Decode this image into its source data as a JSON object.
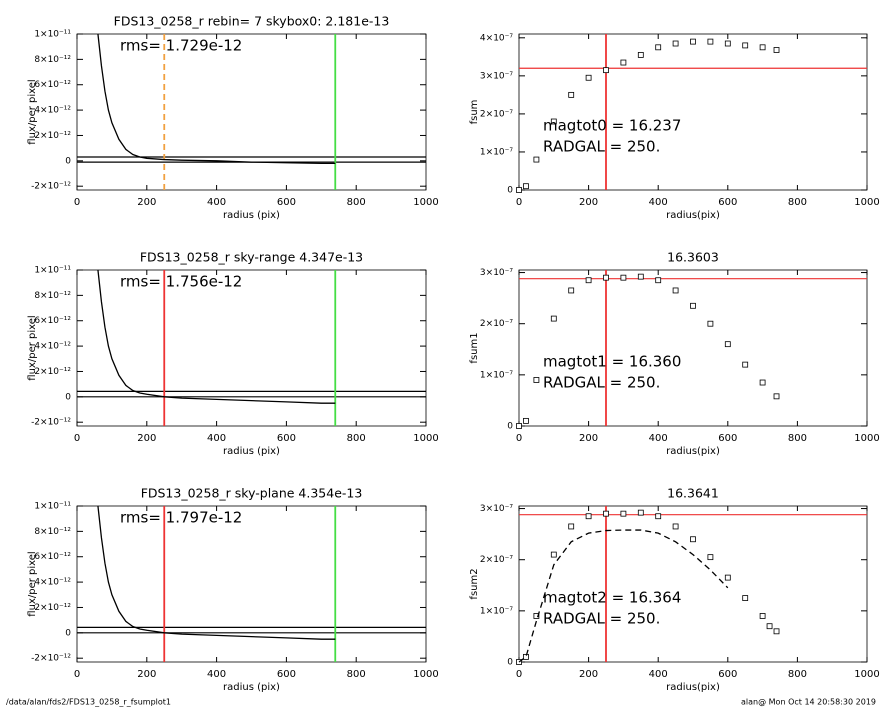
{
  "chart_data": [
    {
      "type": "profile",
      "title": "FDS13_0258_r rebin= 7    skybox0:  2.181e-13",
      "annotations": [
        "rms= 1.729e-12"
      ],
      "xlabel": "radius (pix)",
      "ylabel": "flux/per pixel",
      "x": [
        60,
        70,
        80,
        90,
        100,
        120,
        140,
        160,
        180,
        200,
        250,
        300,
        400,
        500,
        600,
        700,
        740
      ],
      "series": [
        {
          "color": "#000000",
          "values": [
            1e-11,
            7.5e-12,
            5.5e-12,
            4e-12,
            3e-12,
            1.7e-12,
            9e-13,
            5e-13,
            3e-13,
            2e-13,
            1e-13,
            5e-14,
            0,
            -1e-13,
            -1.5e-13,
            -2e-13,
            -2e-13
          ]
        }
      ],
      "xlim": [
        0,
        1000
      ],
      "ylim": [
        -2.3e-12,
        1e-11
      ],
      "xticks": [
        0,
        200,
        400,
        600,
        800,
        1000
      ],
      "yticks": [
        {
          "value": -2e-12,
          "label": "-2×10⁻¹²"
        },
        0,
        {
          "value": 2e-12,
          "label": "2×10⁻¹²"
        },
        {
          "value": 4e-12,
          "label": "4×10⁻¹²"
        },
        {
          "value": 6e-12,
          "label": "6×10⁻¹²"
        },
        {
          "value": 8e-12,
          "label": "8×10⁻¹²"
        },
        {
          "value": 1e-11,
          "label": "1×10⁻¹¹"
        }
      ],
      "hlines": [
        {
          "y": 3e-13,
          "color": "#000000"
        },
        {
          "y": -1e-13,
          "color": "#000000"
        }
      ],
      "vlines": [
        {
          "x": 250,
          "color": "#f0a040",
          "dashed": true
        },
        {
          "x": 740,
          "color": "#44dd44"
        }
      ]
    },
    {
      "type": "growth",
      "annotations": [
        "magtot0 =  16.237",
        "RADGAL =    250."
      ],
      "xlabel": "radius(pix)",
      "ylabel": "fsum",
      "x": [
        0,
        20,
        50,
        100,
        150,
        200,
        250,
        300,
        350,
        400,
        450,
        500,
        550,
        600,
        650,
        700,
        740
      ],
      "series": [
        {
          "color": "#000000",
          "marker": "square",
          "values": [
            0,
            1e-08,
            8e-08,
            1.8e-07,
            2.5e-07,
            2.95e-07,
            3.15e-07,
            3.35e-07,
            3.55e-07,
            3.75e-07,
            3.85e-07,
            3.9e-07,
            3.9e-07,
            3.85e-07,
            3.8e-07,
            3.75e-07,
            3.68e-07
          ]
        }
      ],
      "xlim": [
        0,
        1000
      ],
      "ylim": [
        0,
        4.1e-07
      ],
      "xticks": [
        0,
        200,
        400,
        600,
        800,
        1000
      ],
      "yticks": [
        0,
        {
          "value": 1e-07,
          "label": "1×10⁻⁷"
        },
        {
          "value": 2e-07,
          "label": "2×10⁻⁷"
        },
        {
          "value": 3e-07,
          "label": "3×10⁻⁷"
        },
        {
          "value": 4e-07,
          "label": "4×10⁻⁷"
        }
      ],
      "hlines": [
        {
          "y": 3.2e-07,
          "color": "#ee3333"
        }
      ],
      "vlines": [
        {
          "x": 250,
          "color": "#ee3333"
        }
      ]
    },
    {
      "type": "profile",
      "title": "FDS13_0258_r sky-range  4.347e-13",
      "annotations": [
        "rms= 1.756e-12"
      ],
      "xlabel": "radius (pix)",
      "ylabel": "flux/per pixel",
      "x": [
        60,
        70,
        80,
        90,
        100,
        120,
        140,
        160,
        180,
        200,
        250,
        300,
        400,
        500,
        600,
        700,
        740
      ],
      "series": [
        {
          "color": "#000000",
          "values": [
            1e-11,
            7.5e-12,
            5.5e-12,
            4e-12,
            3e-12,
            1.7e-12,
            9e-13,
            5e-13,
            3e-13,
            2e-13,
            0,
            -1e-13,
            -2e-13,
            -3e-13,
            -4e-13,
            -5e-13,
            -5e-13
          ]
        }
      ],
      "xlim": [
        0,
        1000
      ],
      "ylim": [
        -2.3e-12,
        1e-11
      ],
      "xticks": [
        0,
        200,
        400,
        600,
        800,
        1000
      ],
      "yticks": [
        {
          "value": -2e-12,
          "label": "-2×10⁻¹²"
        },
        0,
        {
          "value": 2e-12,
          "label": "2×10⁻¹²"
        },
        {
          "value": 4e-12,
          "label": "4×10⁻¹²"
        },
        {
          "value": 6e-12,
          "label": "6×10⁻¹²"
        },
        {
          "value": 8e-12,
          "label": "8×10⁻¹²"
        },
        {
          "value": 1e-11,
          "label": "1×10⁻¹¹"
        }
      ],
      "hlines": [
        {
          "y": 4.3e-13,
          "color": "#000000"
        },
        {
          "y": 0,
          "color": "#000000"
        }
      ],
      "vlines": [
        {
          "x": 250,
          "color": "#ee3333"
        },
        {
          "x": 740,
          "color": "#44dd44"
        }
      ]
    },
    {
      "type": "growth",
      "title": "16.3603",
      "annotations": [
        "magtot1 =  16.360",
        "RADGAL =    250."
      ],
      "xlabel": "radius(pix)",
      "ylabel": "fsum1",
      "x": [
        0,
        20,
        50,
        100,
        150,
        200,
        250,
        300,
        350,
        400,
        450,
        500,
        550,
        600,
        650,
        700,
        740
      ],
      "series": [
        {
          "color": "#000000",
          "marker": "square",
          "values": [
            0,
            1e-08,
            9e-08,
            2.1e-07,
            2.65e-07,
            2.85e-07,
            2.9e-07,
            2.9e-07,
            2.92e-07,
            2.85e-07,
            2.65e-07,
            2.35e-07,
            2e-07,
            1.6e-07,
            1.2e-07,
            8.5e-08,
            5.8e-08
          ]
        }
      ],
      "xlim": [
        0,
        1000
      ],
      "ylim": [
        0,
        3.05e-07
      ],
      "xticks": [
        0,
        200,
        400,
        600,
        800,
        1000
      ],
      "yticks": [
        0,
        {
          "value": 1e-07,
          "label": "1×10⁻⁷"
        },
        {
          "value": 2e-07,
          "label": "2×10⁻⁷"
        },
        {
          "value": 3e-07,
          "label": "3×10⁻⁷"
        }
      ],
      "hlines": [
        {
          "y": 2.88e-07,
          "color": "#ee3333"
        }
      ],
      "vlines": [
        {
          "x": 250,
          "color": "#ee3333"
        }
      ]
    },
    {
      "type": "profile",
      "title": "FDS13_0258_r sky-plane  4.354e-13",
      "annotations": [
        "rms= 1.797e-12"
      ],
      "xlabel": "radius (pix)",
      "ylabel": "flux/per pixel",
      "x": [
        60,
        70,
        80,
        90,
        100,
        120,
        140,
        160,
        180,
        200,
        250,
        300,
        400,
        500,
        600,
        700,
        740
      ],
      "series": [
        {
          "color": "#000000",
          "values": [
            1e-11,
            7.5e-12,
            5.5e-12,
            4e-12,
            3e-12,
            1.7e-12,
            9e-13,
            5e-13,
            3e-13,
            2e-13,
            0,
            -1e-13,
            -2e-13,
            -3e-13,
            -4e-13,
            -5e-13,
            -5e-13
          ]
        }
      ],
      "xlim": [
        0,
        1000
      ],
      "ylim": [
        -2.3e-12,
        1e-11
      ],
      "xticks": [
        0,
        200,
        400,
        600,
        800,
        1000
      ],
      "yticks": [
        {
          "value": -2e-12,
          "label": "-2×10⁻¹²"
        },
        0,
        {
          "value": 2e-12,
          "label": "2×10⁻¹²"
        },
        {
          "value": 4e-12,
          "label": "4×10⁻¹²"
        },
        {
          "value": 6e-12,
          "label": "6×10⁻¹²"
        },
        {
          "value": 8e-12,
          "label": "8×10⁻¹²"
        },
        {
          "value": 1e-11,
          "label": "1×10⁻¹¹"
        }
      ],
      "hlines": [
        {
          "y": 4.3e-13,
          "color": "#000000"
        },
        {
          "y": 0,
          "color": "#000000"
        }
      ],
      "vlines": [
        {
          "x": 250,
          "color": "#ee3333"
        },
        {
          "x": 740,
          "color": "#44dd44"
        }
      ]
    },
    {
      "type": "growth",
      "title": "16.3641",
      "annotations": [
        "magtot2 =  16.364",
        "RADGAL =    250."
      ],
      "xlabel": "radius(pix)",
      "ylabel": "fsum2",
      "x": [
        0,
        20,
        50,
        100,
        150,
        200,
        250,
        300,
        350,
        400,
        450,
        500,
        550,
        600,
        650,
        700,
        720,
        740
      ],
      "series": [
        {
          "color": "#000000",
          "marker": "square",
          "values": [
            0,
            1e-08,
            9e-08,
            2.1e-07,
            2.65e-07,
            2.85e-07,
            2.9e-07,
            2.9e-07,
            2.92e-07,
            2.85e-07,
            2.65e-07,
            2.4e-07,
            2.05e-07,
            1.65e-07,
            1.25e-07,
            9e-08,
            7e-08,
            6e-08
          ]
        },
        {
          "color": "#000000",
          "dashed": true,
          "values": [
            0,
            1e-08,
            8e-08,
            1.9e-07,
            2.35e-07,
            2.52e-07,
            2.57e-07,
            2.58e-07,
            2.58e-07,
            2.52e-07,
            2.35e-07,
            2.1e-07,
            1.8e-07,
            1.45e-07,
            null,
            null,
            null,
            null
          ]
        }
      ],
      "xlim": [
        0,
        1000
      ],
      "ylim": [
        0,
        3.05e-07
      ],
      "xticks": [
        0,
        200,
        400,
        600,
        800,
        1000
      ],
      "yticks": [
        0,
        {
          "value": 1e-07,
          "label": "1×10⁻⁷"
        },
        {
          "value": 2e-07,
          "label": "2×10⁻⁷"
        },
        {
          "value": 3e-07,
          "label": "3×10⁻⁷"
        }
      ],
      "hlines": [
        {
          "y": 2.88e-07,
          "color": "#ee3333"
        }
      ],
      "vlines": [
        {
          "x": 250,
          "color": "#ee3333"
        }
      ]
    }
  ],
  "footer": {
    "left": "/data/alan/fds2/FDS13_0258_r_fsumplot1",
    "right": "alan@  Mon Oct 14 20:58:30 2019"
  }
}
